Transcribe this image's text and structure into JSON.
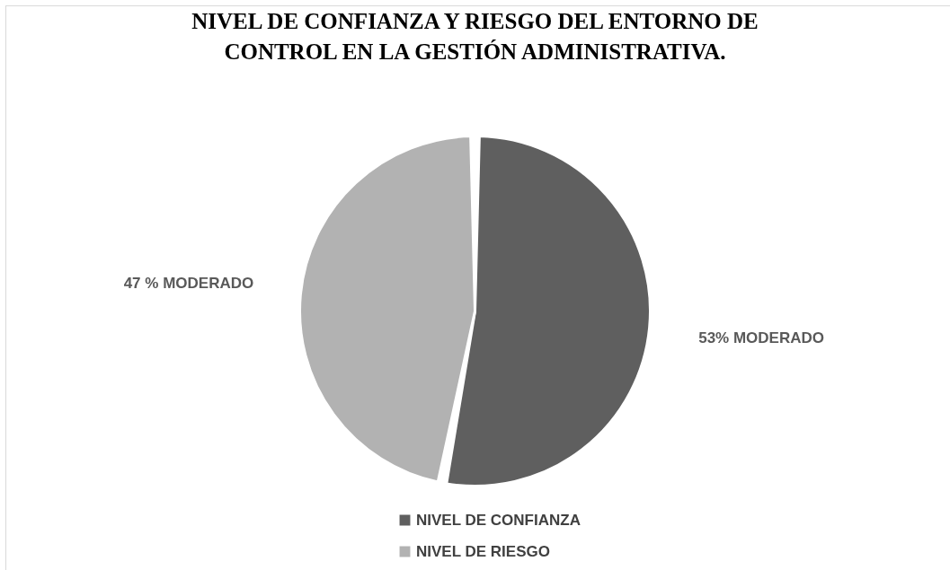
{
  "chart_data": {
    "type": "pie",
    "title": "NIVEL DE CONFIANZA Y RIESGO DEL ENTORNO DE CONTROL  EN LA GESTIÓN ADMINISTRATIVA.",
    "categories": [
      "NIVEL DE CONFIANZA",
      "NIVEL DE RIESGO"
    ],
    "values": [
      53,
      47
    ],
    "colors": [
      "#5f5f5f",
      "#b2b2b2"
    ],
    "value_labels": [
      "53% MODERADO",
      "47 % MODERADO"
    ],
    "legend": "bottom"
  }
}
